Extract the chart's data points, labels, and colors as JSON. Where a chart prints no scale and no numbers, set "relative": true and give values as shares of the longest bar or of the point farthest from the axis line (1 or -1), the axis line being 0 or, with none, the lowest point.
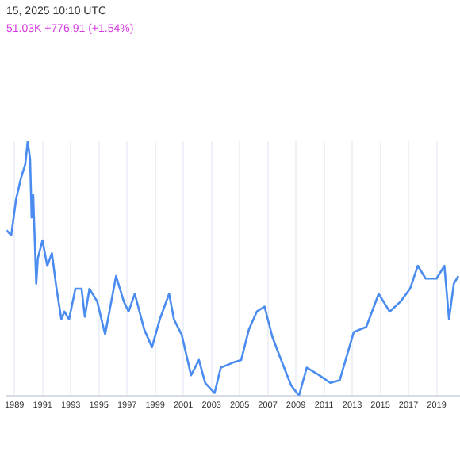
{
  "chart_data": {
    "type": "line",
    "relative": true,
    "annotations": [
      "15, 2025 10:10 UTC",
      "51.03K +776.91 (+1.54%)"
    ],
    "x": [
      1988.44,
      1988.77,
      1989.11,
      1989.44,
      1989.77,
      1989.94,
      1990.11,
      1990.22,
      1990.33,
      1990.55,
      1990.66,
      1990.99,
      1991.33,
      1991.66,
      1991.99,
      1992.33,
      1992.55,
      1992.88,
      1993.33,
      1993.77,
      1994,
      1994.33,
      1994.88,
      1995.44,
      1996.22,
      1996.77,
      1997.11,
      1997.55,
      1998.22,
      1998.77,
      1999.33,
      1999.99,
      2000.33,
      2000.88,
      2001.55,
      2002.11,
      2002.55,
      2003.22,
      2003.66,
      2004.55,
      2005.11,
      2005.66,
      2006.22,
      2006.77,
      2007.33,
      2007.88,
      2008.66,
      2009.22,
      2009.77,
      2010.66,
      2011.44,
      2012.11,
      2013.11,
      2014,
      2014.88,
      2015.66,
      2016.44,
      2017.11,
      2017.66,
      2018.22,
      2018.99,
      2019.55,
      2019.88,
      2020.22,
      2020.55
    ],
    "series": [
      {
        "color": "#4a8cf0",
        "values": [
          0.65,
          0.63,
          0.77,
          0.85,
          0.91,
          1,
          0.93,
          0.7,
          0.79,
          0.44,
          0.54,
          0.61,
          0.51,
          0.56,
          0.42,
          0.3,
          0.33,
          0.3,
          0.42,
          0.42,
          0.31,
          0.42,
          0.37,
          0.24,
          0.47,
          0.37,
          0.33,
          0.4,
          0.26,
          0.19,
          0.3,
          0.4,
          0.3,
          0.24,
          0.08,
          0.14,
          0.05,
          0.01,
          0.11,
          0.13,
          0.14,
          0.26,
          0.33,
          0.35,
          0.23,
          0.15,
          0.04,
          0,
          0.11,
          0.08,
          0.05,
          0.06,
          0.25,
          0.27,
          0.4,
          0.33,
          0.37,
          0.42,
          0.51,
          0.46,
          0.46,
          0.51,
          0.3,
          0.44,
          0.47
        ]
      }
    ],
    "xlim": [
      1988.44,
      2020.66
    ],
    "xticks": [
      1989,
      1991,
      1993,
      1995,
      1997,
      1999,
      2001,
      2003,
      2005,
      2007,
      2009,
      2011,
      2013,
      2015,
      2017,
      2019
    ],
    "grid": true,
    "legend": false
  }
}
